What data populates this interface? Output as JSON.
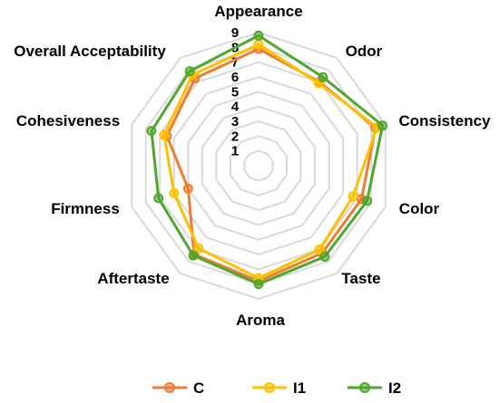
{
  "chart_data": {
    "type": "radar",
    "categories": [
      "Appearance",
      "Odor",
      "Consistency",
      "Color",
      "Taste",
      "Aroma",
      "Aftertaste",
      "Firmness",
      "Cohesiveness",
      "Overall Acceptability"
    ],
    "rlim": [
      0,
      9
    ],
    "ticks": [
      "1",
      "2",
      "3",
      "4",
      "5",
      "6",
      "7",
      "8",
      "9"
    ],
    "grid": true,
    "legend_position": "bottom",
    "series": [
      {
        "name": "C",
        "color": "#ED7D31",
        "values": [
          7.9,
          7.0,
          8.3,
          7.3,
          7.3,
          7.8,
          7.4,
          5.0,
          6.5,
          7.3
        ]
      },
      {
        "name": "I1",
        "color": "#FFC000",
        "values": [
          8.2,
          6.9,
          8.4,
          6.7,
          7.0,
          7.6,
          6.9,
          6.0,
          6.7,
          7.6
        ]
      },
      {
        "name": "I2",
        "color": "#4EA72E",
        "values": [
          8.8,
          7.4,
          8.8,
          7.7,
          7.6,
          8.0,
          7.5,
          7.1,
          7.6,
          7.9
        ]
      }
    ]
  }
}
